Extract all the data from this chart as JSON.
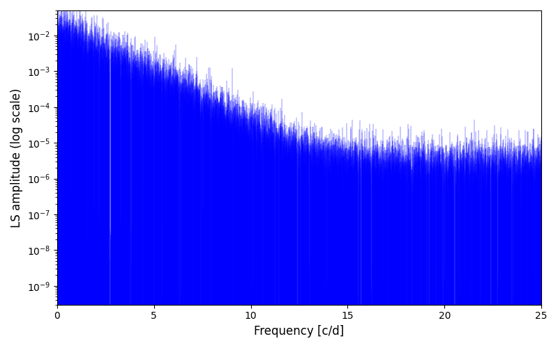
{
  "xlabel": "Frequency [c/d]",
  "ylabel": "LS amplitude (log scale)",
  "xlim": [
    0,
    25
  ],
  "ylim": [
    3e-10,
    0.05
  ],
  "line_color": "#0000ff",
  "background_color": "#ffffff",
  "figsize": [
    8.0,
    5.0
  ],
  "dpi": 100,
  "seed": 42,
  "n_points": 8000,
  "freq_max": 25.0
}
